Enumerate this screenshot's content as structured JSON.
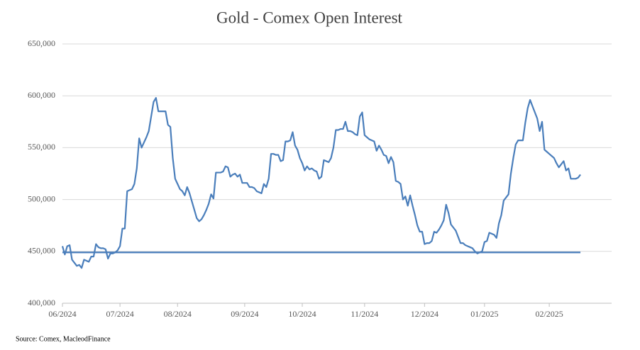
{
  "chart_data": {
    "type": "line",
    "title": "Gold - Comex Open Interest",
    "source": "Source: Comex,  MacleodFinance",
    "categories": [
      "06/2024",
      null,
      null,
      null,
      null,
      null,
      null,
      null,
      null,
      null,
      null,
      null,
      null,
      null,
      null,
      null,
      null,
      null,
      null,
      null,
      null,
      null,
      null,
      null,
      "07/2024",
      null,
      null,
      null,
      null,
      null,
      null,
      null,
      null,
      null,
      null,
      null,
      null,
      null,
      null,
      null,
      null,
      null,
      null,
      null,
      null,
      null,
      null,
      null,
      "08/2024",
      null,
      null,
      null,
      null,
      null,
      null,
      null,
      null,
      null,
      null,
      null,
      null,
      null,
      null,
      null,
      null,
      null,
      null,
      null,
      null,
      null,
      null,
      null,
      null,
      null,
      null,
      null,
      "09/2024",
      null,
      null,
      null,
      null,
      null,
      null,
      null,
      null,
      null,
      null,
      null,
      null,
      null,
      null,
      null,
      null,
      null,
      null,
      null,
      null,
      null,
      null,
      null,
      "10/2024",
      null,
      null,
      null,
      null,
      null,
      null,
      null,
      null,
      null,
      null,
      null,
      null,
      null,
      null,
      null,
      null,
      null,
      null,
      null,
      null,
      null,
      null,
      null,
      null,
      null,
      "11/2024",
      null,
      null,
      null,
      null,
      null,
      null,
      null,
      null,
      null,
      null,
      null,
      null,
      null,
      null,
      null,
      null,
      null,
      null,
      null,
      null,
      null,
      null,
      null,
      null,
      "12/2024",
      null,
      null,
      null,
      null,
      null,
      null,
      null,
      null,
      null,
      null,
      null,
      null,
      null,
      null,
      null,
      null,
      null,
      null,
      null,
      null,
      null,
      null,
      null,
      null,
      "01/2025",
      null,
      null,
      null,
      null,
      null,
      null,
      null,
      null,
      null,
      null,
      null,
      null,
      null,
      null,
      null,
      null,
      null,
      null,
      null,
      null,
      null,
      null,
      null,
      null,
      null,
      null,
      "02/2025",
      null,
      null,
      null,
      null,
      null,
      null,
      null,
      null,
      null,
      null,
      null,
      null,
      null
    ],
    "series": [
      {
        "color": "#4a7ebb",
        "values": [
          455000,
          447000,
          455000,
          456000,
          442000,
          439000,
          436000,
          437000,
          434000,
          442000,
          441000,
          440000,
          445000,
          445000,
          457000,
          454000,
          453000,
          453000,
          452000,
          443000,
          448000,
          448000,
          449000,
          451000,
          455000,
          472000,
          472000,
          508000,
          509000,
          510000,
          515000,
          530000,
          559000,
          550000,
          555000,
          560000,
          566000,
          580000,
          594000,
          598000,
          585000,
          585000,
          585000,
          585000,
          572000,
          570000,
          540000,
          520000,
          515000,
          510000,
          508000,
          504000,
          512000,
          506000,
          498000,
          490000,
          482000,
          479000,
          481000,
          485000,
          490000,
          496000,
          505000,
          501000,
          526000,
          526000,
          526000,
          527000,
          532000,
          531000,
          522000,
          524000,
          525000,
          522000,
          524000,
          516000,
          516000,
          516000,
          512000,
          512000,
          511000,
          508000,
          507000,
          506000,
          515000,
          512000,
          520000,
          544000,
          544000,
          543000,
          543000,
          537000,
          538000,
          556000,
          556000,
          557000,
          565000,
          552000,
          548000,
          540000,
          535000,
          528000,
          532000,
          529000,
          530000,
          528000,
          527000,
          520000,
          522000,
          538000,
          537000,
          536000,
          540000,
          550000,
          567000,
          567000,
          568000,
          568000,
          575000,
          566000,
          566000,
          565000,
          563000,
          562000,
          580000,
          584000,
          562000,
          560000,
          558000,
          557000,
          556000,
          547000,
          552000,
          548000,
          543000,
          542000,
          535000,
          541000,
          536000,
          518000,
          517000,
          515000,
          500000,
          503000,
          494000,
          504000,
          494000,
          485000,
          475000,
          469000,
          469000,
          457000,
          458000,
          458000,
          460000,
          469000,
          468000,
          471000,
          475000,
          480000,
          495000,
          487000,
          476000,
          473000,
          470000,
          464000,
          458000,
          458000,
          456000,
          455000,
          454000,
          453000,
          450000,
          448000,
          449000,
          450000,
          459000,
          460000,
          468000,
          467000,
          466000,
          463000,
          477000,
          485000,
          499000,
          502000,
          505000,
          525000,
          540000,
          553000,
          557000,
          557000,
          557000,
          574000,
          588000,
          596000,
          590000,
          584000,
          578000,
          566000,
          575000,
          548000,
          546000,
          544000,
          542000,
          540000,
          535000,
          531000,
          534000,
          537000,
          528000,
          530000,
          520000,
          520000,
          520000,
          521000,
          524000
        ]
      },
      {
        "color": "#4a7ebb",
        "values": [
          449000,
          449000,
          449000,
          449000,
          449000,
          449000,
          449000,
          449000,
          449000,
          449000,
          449000,
          449000,
          449000,
          449000,
          449000,
          449000,
          449000,
          449000,
          449000,
          449000,
          449000,
          449000,
          449000,
          449000,
          449000,
          449000,
          449000,
          449000,
          449000,
          449000,
          449000,
          449000,
          449000,
          449000,
          449000,
          449000,
          449000,
          449000,
          449000,
          449000,
          449000,
          449000,
          449000,
          449000,
          449000,
          449000,
          449000,
          449000,
          449000,
          449000,
          449000,
          449000,
          449000,
          449000,
          449000,
          449000,
          449000,
          449000,
          449000,
          449000,
          449000,
          449000,
          449000,
          449000,
          449000,
          449000,
          449000,
          449000,
          449000,
          449000,
          449000,
          449000,
          449000,
          449000,
          449000,
          449000,
          449000,
          449000,
          449000,
          449000,
          449000,
          449000,
          449000,
          449000,
          449000,
          449000,
          449000,
          449000,
          449000,
          449000,
          449000,
          449000,
          449000,
          449000,
          449000,
          449000,
          449000,
          449000,
          449000,
          449000,
          449000,
          449000,
          449000,
          449000,
          449000,
          449000,
          449000,
          449000,
          449000,
          449000,
          449000,
          449000,
          449000,
          449000,
          449000,
          449000,
          449000,
          449000,
          449000,
          449000,
          449000,
          449000,
          449000,
          449000,
          449000,
          449000,
          449000,
          449000,
          449000,
          449000,
          449000,
          449000,
          449000,
          449000,
          449000,
          449000,
          449000,
          449000,
          449000,
          449000,
          449000,
          449000,
          449000,
          449000,
          449000,
          449000,
          449000,
          449000,
          449000,
          449000,
          449000,
          449000,
          449000,
          449000,
          449000,
          449000,
          449000,
          449000,
          449000,
          449000,
          449000,
          449000,
          449000,
          449000,
          449000,
          449000,
          449000,
          449000,
          449000,
          449000,
          449000,
          449000,
          449000,
          449000,
          449000,
          449000,
          449000,
          449000,
          449000,
          449000,
          449000,
          449000,
          449000,
          449000,
          449000,
          449000,
          449000,
          449000,
          449000,
          449000,
          449000,
          449000,
          449000,
          449000,
          449000,
          449000,
          449000,
          449000,
          449000,
          449000,
          449000,
          449000,
          449000,
          449000,
          449000,
          449000,
          449000,
          449000,
          449000,
          449000,
          449000,
          449000,
          449000,
          449000,
          449000,
          449000,
          449000
        ]
      }
    ],
    "ylim": [
      400000,
      650000
    ],
    "yticks": [
      {
        "value": 400000,
        "label": "400,000"
      },
      {
        "value": 450000,
        "label": "450,000"
      },
      {
        "value": 500000,
        "label": "500,000"
      },
      {
        "value": 550000,
        "label": "550,000"
      },
      {
        "value": 600000,
        "label": "600,000"
      },
      {
        "value": 650000,
        "label": "650,000"
      }
    ],
    "grid": true
  }
}
